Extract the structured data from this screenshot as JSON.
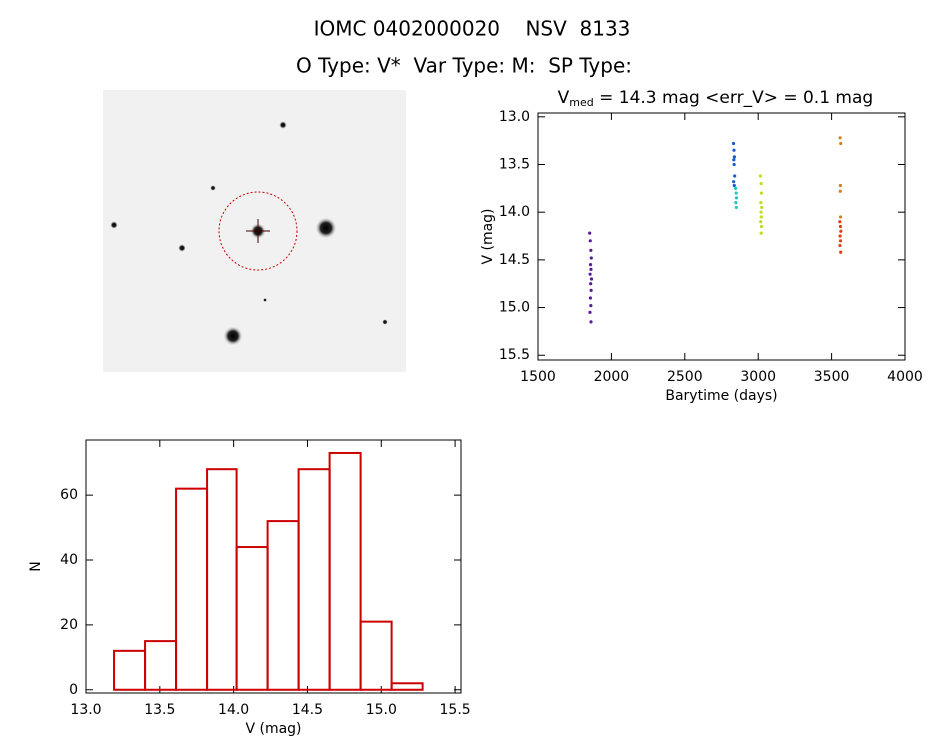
{
  "header": {
    "title": "IOMC 0402000020    NSV  8133",
    "subtitle": "O Type: V*  Var Type: M:  SP Type:"
  },
  "chart_data": [
    {
      "type": "scatter",
      "title": {
        "main": "V",
        "subscript": "med",
        "rest": " = 14.3 mag <err_V> = 0.1 mag"
      },
      "x_label": "Barytime (days)",
      "y_label": "V (mag)",
      "xlim": [
        1500,
        4000
      ],
      "xticks": [
        1500,
        2000,
        2500,
        3000,
        3500,
        4000
      ],
      "ylim": [
        15.55,
        12.96
      ],
      "yticks": [
        {
          "value": 13,
          "label": "13.0"
        },
        13.5,
        {
          "value": 14,
          "label": "14.0"
        },
        14.5,
        {
          "value": 15,
          "label": "15.0"
        },
        15.5
      ],
      "series": [
        {
          "color": "#5a1a9a",
          "x": [
            1852,
            1856,
            1860,
            1863,
            1858,
            1861,
            1855,
            1864,
            1859,
            1862,
            1857,
            1860,
            1854,
            1861
          ],
          "values": [
            14.22,
            14.3,
            14.4,
            14.48,
            14.55,
            14.6,
            14.65,
            14.7,
            14.75,
            14.82,
            14.9,
            14.98,
            15.05,
            15.15
          ]
        },
        {
          "color": "#1a5ad0",
          "x": [
            2832,
            2835,
            2838,
            2834,
            2836,
            2840,
            2833,
            2837
          ],
          "values": [
            13.28,
            13.35,
            13.42,
            13.45,
            13.5,
            13.62,
            13.68,
            13.72
          ]
        },
        {
          "color": "#20c8c0",
          "x": [
            2846,
            2850,
            2852,
            2848,
            2851
          ],
          "values": [
            13.75,
            13.8,
            13.85,
            13.9,
            13.95
          ]
        },
        {
          "color": "#b8e020",
          "x": [
            3015,
            3020,
            3022,
            3018,
            3024,
            3019,
            3021,
            3017,
            3023,
            3020
          ],
          "values": [
            13.62,
            13.7,
            13.8,
            13.9,
            13.95,
            14.0,
            14.05,
            14.1,
            14.15,
            14.22
          ]
        },
        {
          "color": "#d08020",
          "x": [
            3558,
            3562,
            3560,
            3559,
            3561
          ],
          "values": [
            13.22,
            13.28,
            13.72,
            13.78,
            14.05
          ]
        },
        {
          "color": "#e04010",
          "x": [
            3556,
            3560,
            3563,
            3558,
            3561,
            3557,
            3562
          ],
          "values": [
            14.1,
            14.15,
            14.2,
            14.25,
            14.3,
            14.35,
            14.42
          ]
        }
      ]
    },
    {
      "type": "histogram",
      "x_label": "V (mag)",
      "y_label": "N",
      "color": "#cc0000",
      "bins": [
        13.19,
        13.4,
        13.61,
        13.82,
        14.02,
        14.23,
        14.44,
        14.65,
        14.86,
        15.07,
        15.28
      ],
      "values": [
        12,
        15,
        62,
        68,
        44,
        52,
        68,
        73,
        21,
        2
      ],
      "xlim": [
        13.0,
        15.54
      ],
      "xticks": [
        {
          "value": 13,
          "label": "13.0"
        },
        13.5,
        {
          "value": 14,
          "label": "14.0"
        },
        14.5,
        {
          "value": 15,
          "label": "15.0"
        },
        15.5
      ],
      "ylim": [
        -1,
        77
      ],
      "yticks": [
        0,
        20,
        40,
        60
      ]
    }
  ]
}
